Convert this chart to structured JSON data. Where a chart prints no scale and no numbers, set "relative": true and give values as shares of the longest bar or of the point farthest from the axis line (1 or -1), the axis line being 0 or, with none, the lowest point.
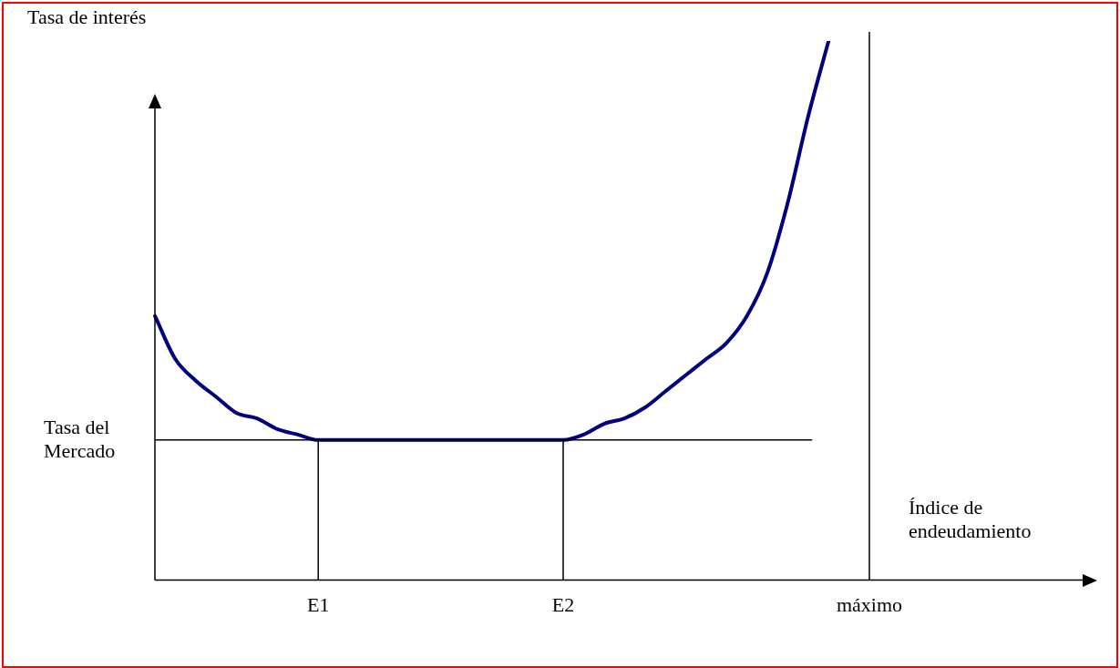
{
  "chart_data": {
    "type": "line",
    "relative": true,
    "ylabel": "Tasa de interés",
    "xlabel": "Índice de endeudamiento",
    "categories": [
      null,
      null,
      null,
      null,
      null,
      null,
      null,
      null,
      "E1",
      null,
      null,
      null,
      null,
      null,
      null,
      null,
      null,
      null,
      null,
      null,
      "E2",
      null,
      null,
      null,
      null,
      null,
      null,
      null,
      null,
      null,
      null,
      null,
      null,
      null,
      null,
      "máximo",
      null,
      null,
      null,
      null,
      null,
      null,
      null,
      null,
      null,
      null
    ],
    "series": [
      {
        "color": "#000080",
        "values": [
          0.49,
          0.41,
          0.37,
          0.34,
          0.31,
          0.3,
          0.28,
          0.27,
          0.26,
          0.26,
          0.26,
          0.26,
          0.26,
          0.26,
          0.26,
          0.26,
          0.26,
          0.26,
          0.26,
          0.26,
          0.26,
          0.27,
          0.29,
          0.3,
          0.32,
          0.35,
          0.38,
          0.41,
          0.44,
          0.49,
          0.57,
          0.7,
          0.86,
          1,
          null,
          null,
          null,
          null,
          null,
          null,
          null,
          null,
          null,
          null,
          null,
          null
        ]
      }
    ],
    "ref_lines": [
      {
        "axis": "y",
        "value": 0.26,
        "label": "Tasa del Mercado"
      },
      {
        "axis": "x",
        "value": "E1"
      },
      {
        "axis": "x",
        "value": "E2"
      },
      {
        "axis": "x",
        "value": "máximo"
      }
    ],
    "grid": false,
    "legend": false,
    "marker": "none",
    "line_style": "solid"
  }
}
